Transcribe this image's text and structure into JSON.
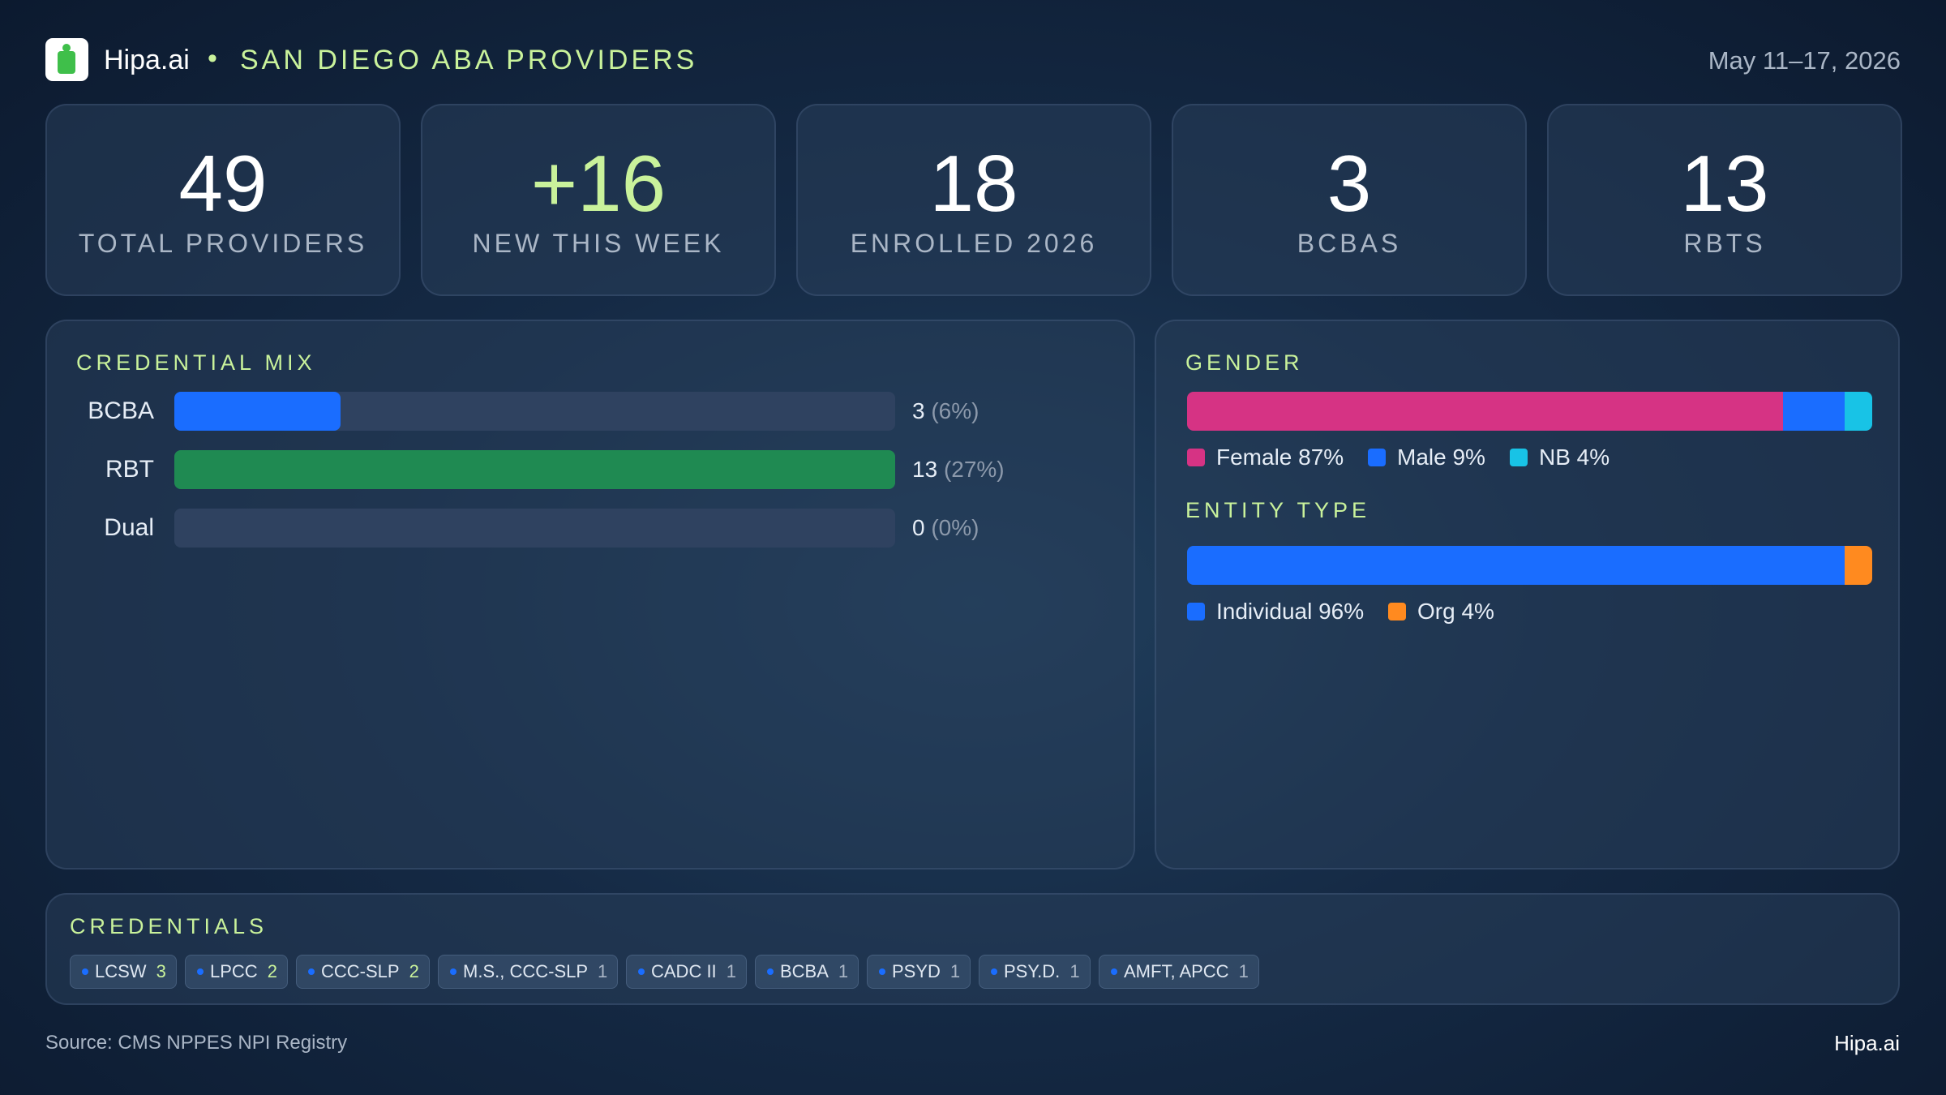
{
  "header": {
    "brand": "Hipa.ai",
    "bullet": "•",
    "title": "SAN DIEGO ABA PROVIDERS",
    "date": "May 11–17, 2026"
  },
  "kpis": [
    {
      "value": "49",
      "label": "TOTAL  PROVIDERS",
      "color": "#ffffff"
    },
    {
      "value": "+16",
      "label": "NEW THIS WEEK",
      "color": "#c9f29b"
    },
    {
      "value": "18",
      "label": "ENROLLED 2026",
      "color": "#ffffff"
    },
    {
      "value": "3",
      "label": "BCBAS",
      "color": "#ffffff"
    },
    {
      "value": "13",
      "label": "RBTS",
      "color": "#ffffff"
    }
  ],
  "credential_mix": {
    "title": "CREDENTIAL MIX",
    "xlim": [
      0,
      13
    ],
    "bars": [
      {
        "name": "BCBA",
        "value": 3,
        "share": "(6%)",
        "color": "#1a6dff"
      },
      {
        "name": "RBT",
        "value": 13,
        "share": "(27%)",
        "color": "#1f8a52"
      },
      {
        "name": "Dual",
        "value": 0,
        "share": "(0%)",
        "color": "#1a6dff"
      }
    ]
  },
  "gender": {
    "title": "GENDER",
    "segments": [
      {
        "label": "Female 87%",
        "value": 87,
        "color": "#d63384"
      },
      {
        "label": "Male 9%",
        "value": 9,
        "color": "#1a6dff"
      },
      {
        "label": "NB 4%",
        "value": 4,
        "color": "#18c3e6"
      }
    ]
  },
  "entity_type": {
    "title": "ENTITY TYPE",
    "segments": [
      {
        "label": "Individual 96%",
        "value": 96,
        "color": "#1a6dff"
      },
      {
        "label": "Org 4%",
        "value": 4,
        "color": "#ff8a1f"
      }
    ]
  },
  "credentials": {
    "title": "CREDENTIALS",
    "chips": [
      {
        "name": "LCSW",
        "count": 3
      },
      {
        "name": "LPCC",
        "count": 2
      },
      {
        "name": "CCC-SLP",
        "count": 2
      },
      {
        "name": "M.S., CCC-SLP",
        "count": 1
      },
      {
        "name": "CADC II",
        "count": 1
      },
      {
        "name": "BCBA",
        "count": 1
      },
      {
        "name": "PSYD",
        "count": 1
      },
      {
        "name": "PSY.D.",
        "count": 1
      },
      {
        "name": "AMFT, APCC",
        "count": 1
      }
    ]
  },
  "footer": {
    "source": "Source: CMS NPPES NPI Registry",
    "brand": "Hipa.ai"
  }
}
